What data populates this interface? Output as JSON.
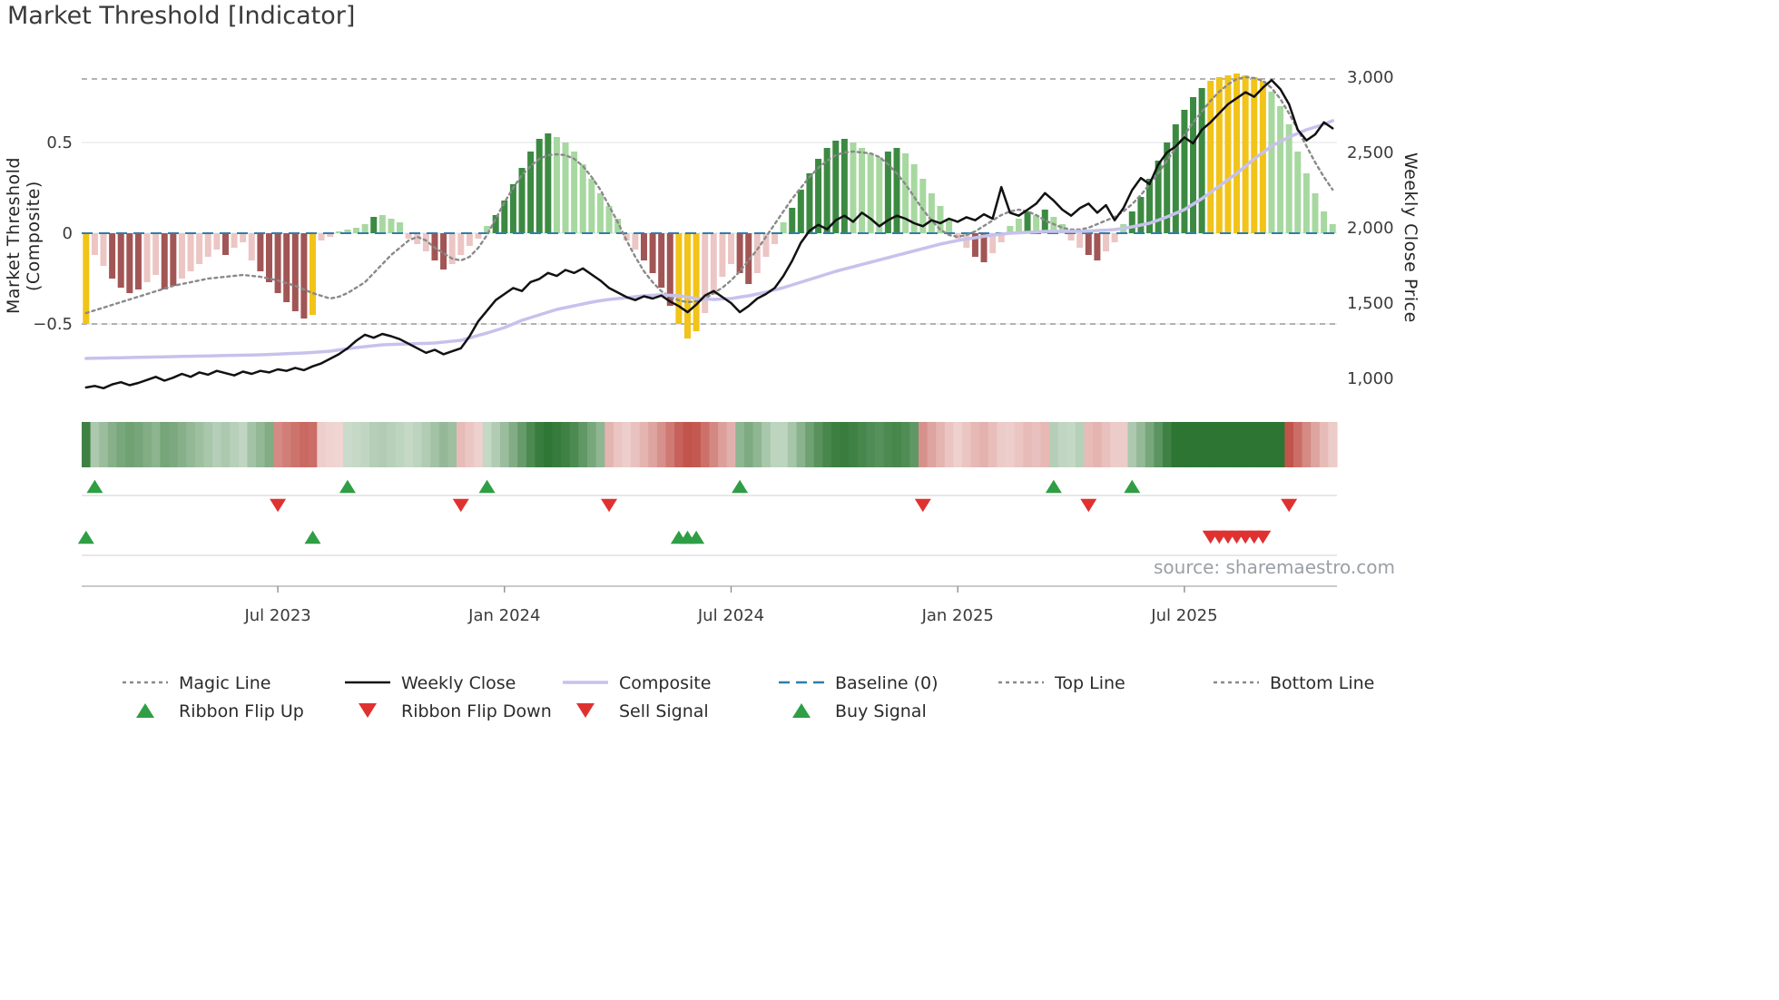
{
  "title": "Market Threshold [Indicator]",
  "source": "source: sharemaestro.com",
  "colors": {
    "dark_green": "#3c8a42",
    "light_green": "#a7d8a0",
    "dark_red": "#a25555",
    "light_red": "#ecc6c4",
    "signal_bar": "#f2c318",
    "ribbon_green": "#226e28",
    "ribbon_red": "#be4b42",
    "weekly_close": "#111111",
    "composite": "#c6c2ec",
    "magic": "#8a8a8a",
    "baseline": "#2e7fa8",
    "guide": "#9a9a9a",
    "signal_up": "#2f9e44",
    "signal_down": "#e03131"
  },
  "chart_data": {
    "type": "bar",
    "title": "Market Threshold [Indicator]",
    "left_axis": {
      "label": "Market Threshold (Composite)",
      "ticks": [
        {
          "value": 0.5,
          "label": "0.5"
        },
        {
          "value": 0,
          "label": "0"
        },
        {
          "value": -0.5,
          "label": "−0.5"
        }
      ],
      "range": [
        -0.97,
        0.92
      ]
    },
    "right_axis": {
      "label": "Weekly Close Price",
      "ticks": [
        {
          "value": 3000,
          "label": "3,000"
        },
        {
          "value": 2500,
          "label": "2,500"
        },
        {
          "value": 2000,
          "label": "2,000"
        },
        {
          "value": 1500,
          "label": "1,500"
        },
        {
          "value": 1000,
          "label": "1,000"
        }
      ],
      "range": [
        900,
        3100
      ]
    },
    "x_ticks": [
      {
        "index": 22,
        "label": "Jul 2023"
      },
      {
        "index": 48,
        "label": "Jan 2024"
      },
      {
        "index": 74,
        "label": "Jul 2024"
      },
      {
        "index": 100,
        "label": "Jan 2025"
      },
      {
        "index": 126,
        "label": "Jul 2025"
      }
    ],
    "baseline": 0,
    "top_line": 0.85,
    "bottom_line": -0.5,
    "threshold_bars": {
      "values": [
        -0.5,
        -0.12,
        -0.18,
        -0.25,
        -0.3,
        -0.33,
        -0.31,
        -0.27,
        -0.23,
        -0.31,
        -0.29,
        -0.25,
        -0.21,
        -0.17,
        -0.13,
        -0.09,
        -0.12,
        -0.08,
        -0.05,
        -0.15,
        -0.21,
        -0.27,
        -0.33,
        -0.38,
        -0.43,
        -0.47,
        -0.45,
        -0.04,
        -0.02,
        0.01,
        0.02,
        0.03,
        0.05,
        0.09,
        0.1,
        0.08,
        0.06,
        -0.03,
        -0.06,
        -0.1,
        -0.15,
        -0.2,
        -0.17,
        -0.12,
        -0.07,
        -0.03,
        0.04,
        0.1,
        0.18,
        0.27,
        0.36,
        0.45,
        0.52,
        0.55,
        0.53,
        0.5,
        0.45,
        0.38,
        0.3,
        0.22,
        0.15,
        0.08,
        -0.04,
        -0.09,
        -0.15,
        -0.22,
        -0.3,
        -0.4,
        -0.5,
        -0.58,
        -0.54,
        -0.44,
        -0.34,
        -0.24,
        -0.17,
        -0.22,
        -0.28,
        -0.22,
        -0.13,
        -0.06,
        0.06,
        0.14,
        0.24,
        0.33,
        0.41,
        0.47,
        0.51,
        0.52,
        0.5,
        0.47,
        0.44,
        0.42,
        0.45,
        0.47,
        0.44,
        0.38,
        0.3,
        0.22,
        0.15,
        0.08,
        -0.03,
        -0.08,
        -0.13,
        -0.16,
        -0.11,
        -0.05,
        0.04,
        0.08,
        0.12,
        0.1,
        0.13,
        0.09,
        0.05,
        -0.04,
        -0.08,
        -0.12,
        -0.15,
        -0.1,
        -0.05,
        0.05,
        0.12,
        0.2,
        0.3,
        0.4,
        0.5,
        0.6,
        0.68,
        0.75,
        0.8,
        0.84,
        0.86,
        0.87,
        0.88,
        0.87,
        0.86,
        0.84,
        0.78,
        0.7,
        0.6,
        0.45,
        0.33,
        0.22,
        0.12,
        0.05
      ],
      "colors": [
        "y",
        "lr",
        "lr",
        "dr",
        "dr",
        "dr",
        "dr",
        "lr",
        "lr",
        "dr",
        "dr",
        "lr",
        "lr",
        "lr",
        "lr",
        "lr",
        "dr",
        "lr",
        "lr",
        "lr",
        "dr",
        "dr",
        "dr",
        "dr",
        "dr",
        "dr",
        "y",
        "lr",
        "lr",
        "lg",
        "lg",
        "lg",
        "lg",
        "dg",
        "lg",
        "lg",
        "lg",
        "lr",
        "lr",
        "lr",
        "dr",
        "dr",
        "lr",
        "lr",
        "lr",
        "lr",
        "lg",
        "dg",
        "dg",
        "dg",
        "dg",
        "dg",
        "dg",
        "dg",
        "lg",
        "lg",
        "lg",
        "lg",
        "lg",
        "lg",
        "lg",
        "lg",
        "lr",
        "lr",
        "dr",
        "dr",
        "dr",
        "dr",
        "y",
        "y",
        "y",
        "lr",
        "lr",
        "lr",
        "lr",
        "dr",
        "dr",
        "lr",
        "lr",
        "lr",
        "lg",
        "dg",
        "dg",
        "dg",
        "dg",
        "dg",
        "dg",
        "dg",
        "lg",
        "lg",
        "lg",
        "lg",
        "dg",
        "dg",
        "lg",
        "lg",
        "lg",
        "lg",
        "lg",
        "lg",
        "lr",
        "lr",
        "dr",
        "dr",
        "lr",
        "lr",
        "lg",
        "lg",
        "dg",
        "lg",
        "dg",
        "lg",
        "lg",
        "lr",
        "lr",
        "dr",
        "dr",
        "lr",
        "lr",
        "lg",
        "dg",
        "dg",
        "dg",
        "dg",
        "dg",
        "dg",
        "dg",
        "dg",
        "dg",
        "y",
        "y",
        "y",
        "y",
        "y",
        "y",
        "y",
        "lg",
        "lg",
        "lg",
        "lg",
        "lg",
        "lg",
        "lg",
        "lg"
      ]
    },
    "series": [
      {
        "name": "Magic Line",
        "axis": "left",
        "values": [
          -0.44,
          -0.425,
          -0.41,
          -0.395,
          -0.38,
          -0.365,
          -0.35,
          -0.335,
          -0.32,
          -0.305,
          -0.29,
          -0.28,
          -0.27,
          -0.26,
          -0.25,
          -0.245,
          -0.24,
          -0.235,
          -0.23,
          -0.235,
          -0.24,
          -0.25,
          -0.26,
          -0.275,
          -0.29,
          -0.31,
          -0.33,
          -0.345,
          -0.36,
          -0.35,
          -0.33,
          -0.3,
          -0.27,
          -0.22,
          -0.17,
          -0.12,
          -0.08,
          -0.04,
          -0.02,
          -0.04,
          -0.08,
          -0.11,
          -0.14,
          -0.15,
          -0.13,
          -0.08,
          -0.01,
          0.08,
          0.17,
          0.25,
          0.32,
          0.37,
          0.41,
          0.43,
          0.435,
          0.43,
          0.41,
          0.37,
          0.31,
          0.24,
          0.15,
          0.06,
          -0.04,
          -0.13,
          -0.21,
          -0.27,
          -0.32,
          -0.35,
          -0.37,
          -0.38,
          -0.375,
          -0.36,
          -0.33,
          -0.3,
          -0.26,
          -0.21,
          -0.15,
          -0.09,
          -0.02,
          0.05,
          0.12,
          0.19,
          0.25,
          0.31,
          0.36,
          0.4,
          0.43,
          0.445,
          0.45,
          0.445,
          0.44,
          0.42,
          0.38,
          0.33,
          0.27,
          0.2,
          0.13,
          0.07,
          0.02,
          -0.01,
          -0.02,
          -0.01,
          0.01,
          0.04,
          0.07,
          0.1,
          0.12,
          0.13,
          0.12,
          0.1,
          0.07,
          0.05,
          0.03,
          0.02,
          0.02,
          0.03,
          0.05,
          0.07,
          0.09,
          0.12,
          0.16,
          0.21,
          0.27,
          0.33,
          0.4,
          0.47,
          0.54,
          0.61,
          0.67,
          0.73,
          0.78,
          0.82,
          0.85,
          0.86,
          0.855,
          0.84,
          0.8,
          0.74,
          0.66,
          0.57,
          0.48,
          0.39,
          0.31,
          0.24
        ]
      },
      {
        "name": "Composite",
        "axis": "left",
        "values": [
          -0.69,
          -0.689,
          -0.688,
          -0.687,
          -0.686,
          -0.685,
          -0.684,
          -0.683,
          -0.682,
          -0.681,
          -0.68,
          -0.679,
          -0.678,
          -0.677,
          -0.676,
          -0.675,
          -0.674,
          -0.673,
          -0.672,
          -0.671,
          -0.67,
          -0.668,
          -0.666,
          -0.664,
          -0.662,
          -0.66,
          -0.657,
          -0.654,
          -0.65,
          -0.643,
          -0.637,
          -0.63,
          -0.625,
          -0.62,
          -0.615,
          -0.613,
          -0.611,
          -0.61,
          -0.608,
          -0.607,
          -0.605,
          -0.6,
          -0.595,
          -0.59,
          -0.577,
          -0.563,
          -0.55,
          -0.535,
          -0.52,
          -0.5,
          -0.48,
          -0.465,
          -0.45,
          -0.435,
          -0.42,
          -0.41,
          -0.4,
          -0.39,
          -0.38,
          -0.372,
          -0.365,
          -0.36,
          -0.355,
          -0.35,
          -0.345,
          -0.342,
          -0.34,
          -0.342,
          -0.345,
          -0.352,
          -0.36,
          -0.362,
          -0.365,
          -0.362,
          -0.36,
          -0.352,
          -0.345,
          -0.335,
          -0.325,
          -0.312,
          -0.3,
          -0.285,
          -0.27,
          -0.255,
          -0.24,
          -0.225,
          -0.21,
          -0.197,
          -0.185,
          -0.172,
          -0.16,
          -0.147,
          -0.135,
          -0.122,
          -0.11,
          -0.097,
          -0.085,
          -0.072,
          -0.06,
          -0.05,
          -0.04,
          -0.032,
          -0.025,
          -0.017,
          -0.01,
          -0.005,
          0.0,
          0.002,
          0.005,
          0.007,
          0.01,
          0.01,
          0.01,
          0.01,
          0.01,
          0.012,
          0.015,
          0.017,
          0.02,
          0.027,
          0.035,
          0.045,
          0.055,
          0.072,
          0.09,
          0.11,
          0.13,
          0.16,
          0.19,
          0.225,
          0.26,
          0.295,
          0.33,
          0.37,
          0.41,
          0.445,
          0.48,
          0.505,
          0.53,
          0.55,
          0.57,
          0.585,
          0.6,
          0.62
        ]
      },
      {
        "name": "Weekly Close",
        "axis": "right",
        "values": [
          940,
          950,
          935,
          960,
          975,
          955,
          970,
          990,
          1010,
          985,
          1005,
          1030,
          1010,
          1040,
          1025,
          1050,
          1035,
          1020,
          1045,
          1030,
          1050,
          1040,
          1060,
          1050,
          1070,
          1055,
          1080,
          1100,
          1130,
          1160,
          1200,
          1250,
          1290,
          1270,
          1295,
          1280,
          1260,
          1230,
          1200,
          1170,
          1190,
          1160,
          1180,
          1200,
          1280,
          1380,
          1450,
          1520,
          1560,
          1600,
          1580,
          1640,
          1660,
          1700,
          1680,
          1720,
          1700,
          1730,
          1690,
          1650,
          1600,
          1570,
          1540,
          1520,
          1545,
          1530,
          1550,
          1510,
          1480,
          1440,
          1490,
          1550,
          1580,
          1540,
          1500,
          1440,
          1480,
          1530,
          1560,
          1600,
          1680,
          1780,
          1900,
          1980,
          2020,
          1990,
          2050,
          2080,
          2040,
          2100,
          2060,
          2010,
          2050,
          2080,
          2060,
          2030,
          2010,
          2050,
          2030,
          2060,
          2040,
          2070,
          2050,
          2090,
          2060,
          2270,
          2100,
          2080,
          2120,
          2160,
          2230,
          2180,
          2120,
          2080,
          2130,
          2160,
          2100,
          2150,
          2050,
          2130,
          2250,
          2330,
          2290,
          2420,
          2500,
          2540,
          2600,
          2560,
          2650,
          2700,
          2760,
          2820,
          2860,
          2900,
          2870,
          2930,
          2980,
          2920,
          2820,
          2650,
          2580,
          2620,
          2700,
          2660
        ]
      }
    ],
    "ribbon_segments": [
      {
        "from": 0,
        "to": 21,
        "dir": "green"
      },
      {
        "from": 22,
        "to": 29,
        "dir": "red"
      },
      {
        "from": 30,
        "to": 42,
        "dir": "green"
      },
      {
        "from": 43,
        "to": 45,
        "dir": "red"
      },
      {
        "from": 46,
        "to": 59,
        "dir": "green"
      },
      {
        "from": 60,
        "to": 74,
        "dir": "red"
      },
      {
        "from": 75,
        "to": 95,
        "dir": "green"
      },
      {
        "from": 96,
        "to": 110,
        "dir": "red"
      },
      {
        "from": 111,
        "to": 114,
        "dir": "green"
      },
      {
        "from": 115,
        "to": 119,
        "dir": "red"
      },
      {
        "from": 120,
        "to": 137,
        "dir": "green"
      },
      {
        "from": 138,
        "to": 143,
        "dir": "red"
      }
    ],
    "signals": {
      "ribbon_flip_up": [
        1,
        30,
        46,
        75,
        111,
        120
      ],
      "ribbon_flip_down": [
        22,
        43,
        60,
        96,
        115,
        138
      ],
      "buy": [
        0,
        26,
        68,
        69,
        70
      ],
      "sell": [
        129,
        130,
        131,
        132,
        133,
        134,
        135
      ]
    }
  },
  "legend": {
    "rows": [
      [
        {
          "label": "Magic Line",
          "marker": "dash-gray"
        },
        {
          "label": "Weekly Close",
          "marker": "solid-black"
        },
        {
          "label": "Composite",
          "marker": "solid-lavender"
        },
        {
          "label": "Baseline (0)",
          "marker": "dash-blue"
        },
        {
          "label": "Top Line",
          "marker": "dash-gray"
        },
        {
          "label": "Bottom Line",
          "marker": "dash-gray"
        }
      ],
      [
        {
          "label": "Ribbon Flip Up",
          "marker": "tri-up"
        },
        {
          "label": "Ribbon Flip Down",
          "marker": "tri-down"
        },
        {
          "label": "Sell Signal",
          "marker": "tri-down"
        },
        {
          "label": "Buy Signal",
          "marker": "tri-up"
        }
      ]
    ]
  }
}
